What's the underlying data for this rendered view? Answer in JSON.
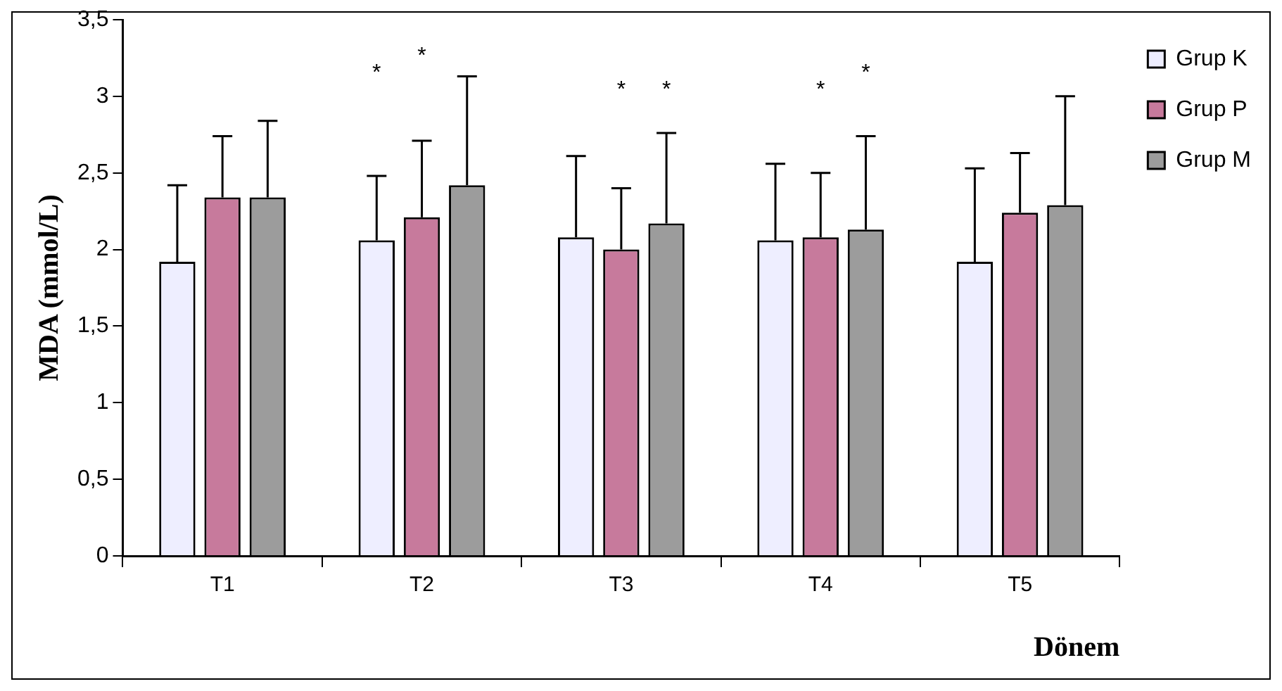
{
  "chart_data": {
    "type": "bar",
    "xlabel": "Dönem",
    "ylabel": "MDA (mmol/L)",
    "categories": [
      "T1",
      "T2",
      "T3",
      "T4",
      "T5"
    ],
    "series": [
      {
        "name": "Grup K",
        "color": "#eeeeff",
        "values": [
          1.92,
          2.06,
          2.08,
          2.06,
          1.92
        ],
        "errors": [
          [
            1.92,
            2.42
          ],
          [
            2.06,
            2.48
          ],
          [
            2.08,
            2.61
          ],
          [
            2.06,
            2.56
          ],
          [
            1.92,
            2.53
          ]
        ]
      },
      {
        "name": "Grup P",
        "color": "#c77a9c",
        "values": [
          2.34,
          2.21,
          2.0,
          2.08,
          2.24
        ],
        "errors": [
          [
            2.34,
            2.74
          ],
          [
            2.21,
            2.71
          ],
          [
            2.0,
            2.4
          ],
          [
            2.08,
            2.5
          ],
          [
            2.24,
            2.63
          ]
        ]
      },
      {
        "name": "Grup M",
        "color": "#9c9c9c",
        "values": [
          2.34,
          2.42,
          2.17,
          2.13,
          2.29
        ],
        "errors": [
          [
            2.34,
            2.84
          ],
          [
            2.42,
            3.13
          ],
          [
            2.17,
            2.76
          ],
          [
            2.13,
            2.74
          ],
          [
            2.29,
            3.0
          ]
        ]
      }
    ],
    "ylim": [
      0,
      3.5
    ],
    "yticks": [
      0,
      {
        "value": 0.5,
        "label": "0,5"
      },
      1,
      {
        "value": 1.5,
        "label": "1,5"
      },
      2,
      {
        "value": 2.5,
        "label": "2,5"
      },
      3,
      {
        "value": 3.5,
        "label": "3,5"
      }
    ],
    "grid": false,
    "legend": "top right",
    "annotations": [
      "*",
      "*",
      "*",
      "*",
      "*",
      "*"
    ]
  }
}
